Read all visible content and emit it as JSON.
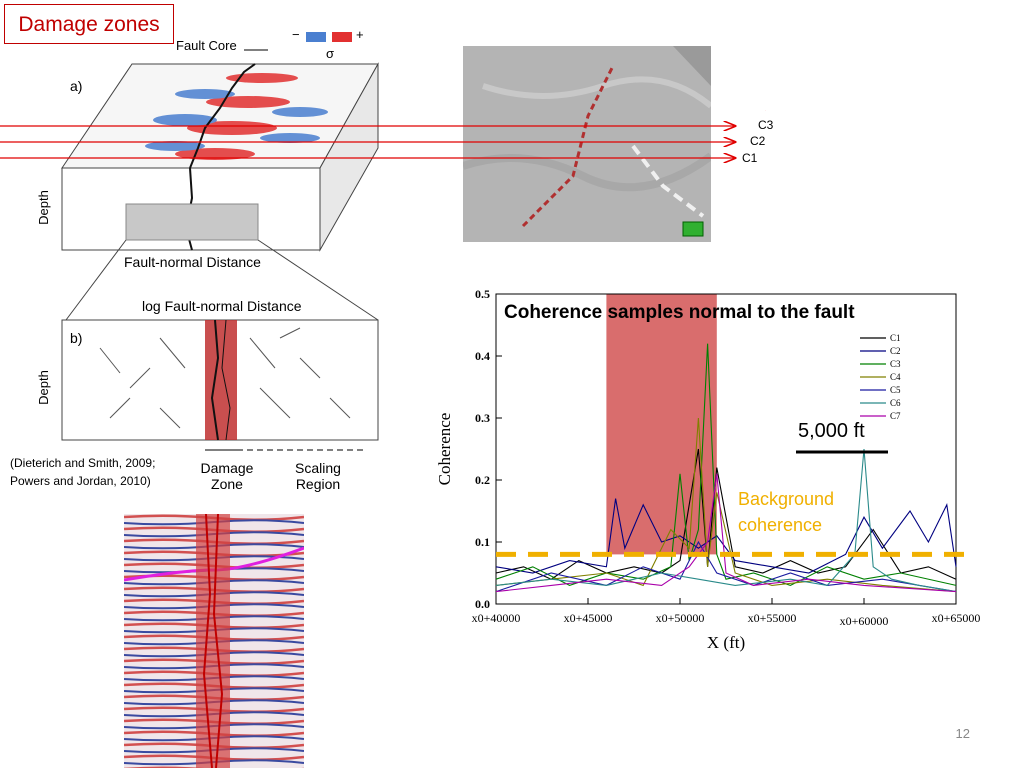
{
  "slide": {
    "title": "Damage zones",
    "slide_number": "12",
    "citation_line1": "(Dieterich and Smith, 2009;",
    "citation_line2": "Powers and Jordan, 2010)"
  },
  "diagram_a": {
    "panel_label": "a)",
    "fault_core_label": "Fault Core",
    "sigma_label": "σ",
    "colorbar_minus": "−",
    "colorbar_plus": "+",
    "depth_label": "Depth",
    "xlabel": "Fault-normal Distance"
  },
  "diagram_b": {
    "panel_label": "b)",
    "title": "log Fault-normal Distance",
    "depth_label": "Depth",
    "damage_zone_label": "Damage Zone",
    "scaling_region_label": "Scaling Region"
  },
  "arrows": {
    "c1": "C1",
    "c2": "C2",
    "c3": "C3"
  },
  "chart_data": {
    "type": "line",
    "title": "Coherence samples normal to the fault",
    "xlabel": "X (ft)",
    "ylabel": "Coherence",
    "xlim": [
      40000,
      65000
    ],
    "ylim": [
      0,
      0.5
    ],
    "x_ticks": [
      "x0+40000",
      "x0+45000",
      "x0+50000",
      "x0+55000",
      "x0+60000",
      "x0+65000"
    ],
    "y_ticks": [
      "0.0",
      "0.1",
      "0.2",
      "0.3",
      "0.4",
      "0.5"
    ],
    "legend_position": "top-right",
    "series": [
      {
        "name": "C1",
        "color": "#000000",
        "x": [
          40000,
          41500,
          43000,
          44500,
          46000,
          47500,
          49000,
          50000,
          51000,
          51500,
          52000,
          53000,
          54500,
          56000,
          57500,
          59000,
          60500,
          62000,
          63500,
          65000
        ],
        "values": [
          0.05,
          0.06,
          0.04,
          0.07,
          0.05,
          0.06,
          0.05,
          0.07,
          0.25,
          0.06,
          0.22,
          0.06,
          0.05,
          0.07,
          0.05,
          0.06,
          0.12,
          0.05,
          0.06,
          0.04
        ]
      },
      {
        "name": "C2",
        "color": "#000080",
        "x": [
          40000,
          42000,
          44000,
          46000,
          46500,
          47000,
          48000,
          49000,
          50000,
          51000,
          52000,
          53000,
          55000,
          57000,
          59000,
          60000,
          61000,
          62500,
          63500,
          64500,
          65000
        ],
        "values": [
          0.06,
          0.05,
          0.07,
          0.06,
          0.17,
          0.09,
          0.16,
          0.1,
          0.11,
          0.09,
          0.11,
          0.07,
          0.06,
          0.05,
          0.08,
          0.14,
          0.09,
          0.15,
          0.1,
          0.16,
          0.06
        ]
      },
      {
        "name": "C3",
        "color": "#008000",
        "x": [
          40000,
          42000,
          44000,
          46000,
          48000,
          49500,
          50000,
          50500,
          51000,
          51500,
          52000,
          52500,
          54000,
          56000,
          58000,
          60000,
          62000,
          65000
        ],
        "values": [
          0.04,
          0.06,
          0.03,
          0.05,
          0.04,
          0.06,
          0.21,
          0.07,
          0.12,
          0.42,
          0.08,
          0.04,
          0.05,
          0.03,
          0.06,
          0.04,
          0.05,
          0.03
        ]
      },
      {
        "name": "C4",
        "color": "#808000",
        "x": [
          40000,
          43000,
          46000,
          48000,
          49500,
          50500,
          51000,
          51500,
          52000,
          53000,
          55000,
          58000,
          61000,
          65000
        ],
        "values": [
          0.03,
          0.04,
          0.05,
          0.03,
          0.12,
          0.09,
          0.3,
          0.06,
          0.18,
          0.05,
          0.03,
          0.04,
          0.03,
          0.02
        ]
      },
      {
        "name": "C5",
        "color": "#1a1aa0",
        "x": [
          40000,
          43000,
          46000,
          48000,
          50000,
          51000,
          52000,
          54000,
          56000,
          58000,
          61000,
          65000
        ],
        "values": [
          0.02,
          0.05,
          0.03,
          0.06,
          0.04,
          0.1,
          0.05,
          0.03,
          0.05,
          0.03,
          0.04,
          0.02
        ]
      },
      {
        "name": "C6",
        "color": "#2a8a8a",
        "x": [
          40000,
          43000,
          46000,
          49000,
          51000,
          53000,
          56000,
          58000,
          59500,
          60000,
          60500,
          61500,
          63000,
          65000
        ],
        "values": [
          0.03,
          0.04,
          0.03,
          0.05,
          0.04,
          0.03,
          0.04,
          0.03,
          0.08,
          0.25,
          0.06,
          0.04,
          0.03,
          0.02
        ]
      },
      {
        "name": "C7",
        "color": "#aa00aa",
        "x": [
          40000,
          43000,
          46000,
          49000,
          50500,
          51500,
          52000,
          52500,
          54000,
          57000,
          60000,
          65000
        ],
        "values": [
          0.02,
          0.03,
          0.04,
          0.03,
          0.06,
          0.1,
          0.21,
          0.05,
          0.03,
          0.04,
          0.03,
          0.02
        ]
      }
    ],
    "highlight_band": {
      "x_start": 46000,
      "x_end": 52000,
      "color": "#d04848"
    },
    "background_level": {
      "value": 0.08,
      "label_line1": "Background",
      "label_line2": "coherence",
      "color": "#f0b000"
    },
    "scale_bar": {
      "label": "5,000 ft",
      "length_x": 5000
    }
  }
}
